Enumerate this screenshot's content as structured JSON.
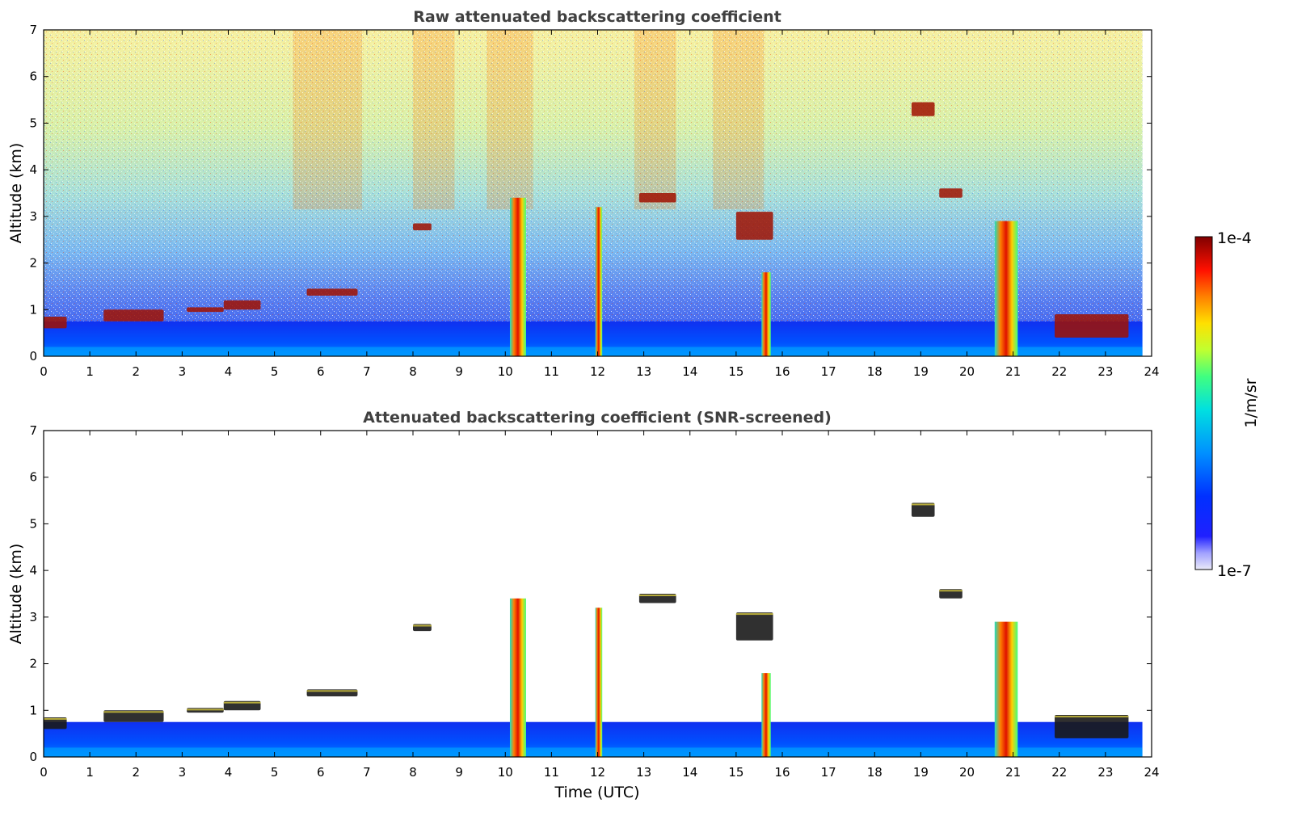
{
  "chart_data": [
    {
      "type": "heatmap",
      "title": "Raw attenuated backscattering coefficient",
      "xlabel": "",
      "ylabel": "Altitude (km)",
      "xlim": [
        0,
        24
      ],
      "ylim": [
        0,
        7
      ],
      "xticks": [
        "0",
        "1",
        "2",
        "3",
        "4",
        "5",
        "6",
        "7",
        "8",
        "9",
        "10",
        "11",
        "12",
        "13",
        "14",
        "15",
        "16",
        "17",
        "18",
        "19",
        "20",
        "21",
        "22",
        "23",
        "24"
      ],
      "yticks": [
        "0",
        "1",
        "2",
        "3",
        "4",
        "5",
        "6",
        "7"
      ],
      "data_extent_hours": [
        0,
        23.8
      ],
      "features": {
        "boundary_layer": {
          "top_km": 0.75
        },
        "cloud_layers": [
          {
            "x": [
              0.0,
              0.5
            ],
            "y": [
              0.6,
              0.85
            ]
          },
          {
            "x": [
              1.3,
              2.6
            ],
            "y": [
              0.75,
              1.0
            ]
          },
          {
            "x": [
              3.1,
              3.9
            ],
            "y": [
              0.95,
              1.05
            ]
          },
          {
            "x": [
              3.9,
              4.7
            ],
            "y": [
              1.0,
              1.2
            ]
          },
          {
            "x": [
              5.7,
              6.8
            ],
            "y": [
              1.3,
              1.45
            ]
          },
          {
            "x": [
              8.0,
              8.4
            ],
            "y": [
              2.7,
              2.85
            ]
          },
          {
            "x": [
              12.9,
              13.7
            ],
            "y": [
              3.3,
              3.5
            ]
          },
          {
            "x": [
              15.0,
              15.8
            ],
            "y": [
              2.5,
              3.1
            ]
          },
          {
            "x": [
              18.8,
              19.3
            ],
            "y": [
              5.15,
              5.45
            ]
          },
          {
            "x": [
              19.4,
              19.9
            ],
            "y": [
              3.4,
              3.6
            ]
          },
          {
            "x": [
              21.9,
              23.5
            ],
            "y": [
              0.4,
              0.9
            ]
          }
        ],
        "precipitation_columns": [
          {
            "x": [
              10.1,
              10.45
            ],
            "top_km": 3.4
          },
          {
            "x": [
              11.95,
              12.1
            ],
            "top_km": 3.2
          },
          {
            "x": [
              15.55,
              15.75
            ],
            "top_km": 1.8
          },
          {
            "x": [
              20.6,
              21.1
            ],
            "top_km": 2.9
          }
        ]
      }
    },
    {
      "type": "heatmap",
      "title": "Attenuated backscattering coefficient (SNR-screened)",
      "xlabel": "Time (UTC)",
      "ylabel": "Altitude (km)",
      "xlim": [
        0,
        24
      ],
      "ylim": [
        0,
        7
      ],
      "xticks": [
        "0",
        "1",
        "2",
        "3",
        "4",
        "5",
        "6",
        "7",
        "8",
        "9",
        "10",
        "11",
        "12",
        "13",
        "14",
        "15",
        "16",
        "17",
        "18",
        "19",
        "20",
        "21",
        "22",
        "23",
        "24"
      ],
      "yticks": [
        "0",
        "1",
        "2",
        "3",
        "4",
        "5",
        "6",
        "7"
      ],
      "data_extent_hours": [
        0,
        23.8
      ],
      "features": {
        "boundary_layer": {
          "top_km": 0.75
        },
        "screened": true
      }
    }
  ],
  "colorbar": {
    "label": "1/m/sr",
    "min_label": "1e-7",
    "max_label": "1e-4",
    "scale": "log",
    "colormap": "jet",
    "colors": [
      "#e8e8f8",
      "#9a9aff",
      "#0000ff",
      "#0050ff",
      "#00a0ff",
      "#00e0e0",
      "#40ff80",
      "#c0ff40",
      "#ffe000",
      "#ff9000",
      "#ff2000",
      "#c00000",
      "#800000"
    ]
  }
}
